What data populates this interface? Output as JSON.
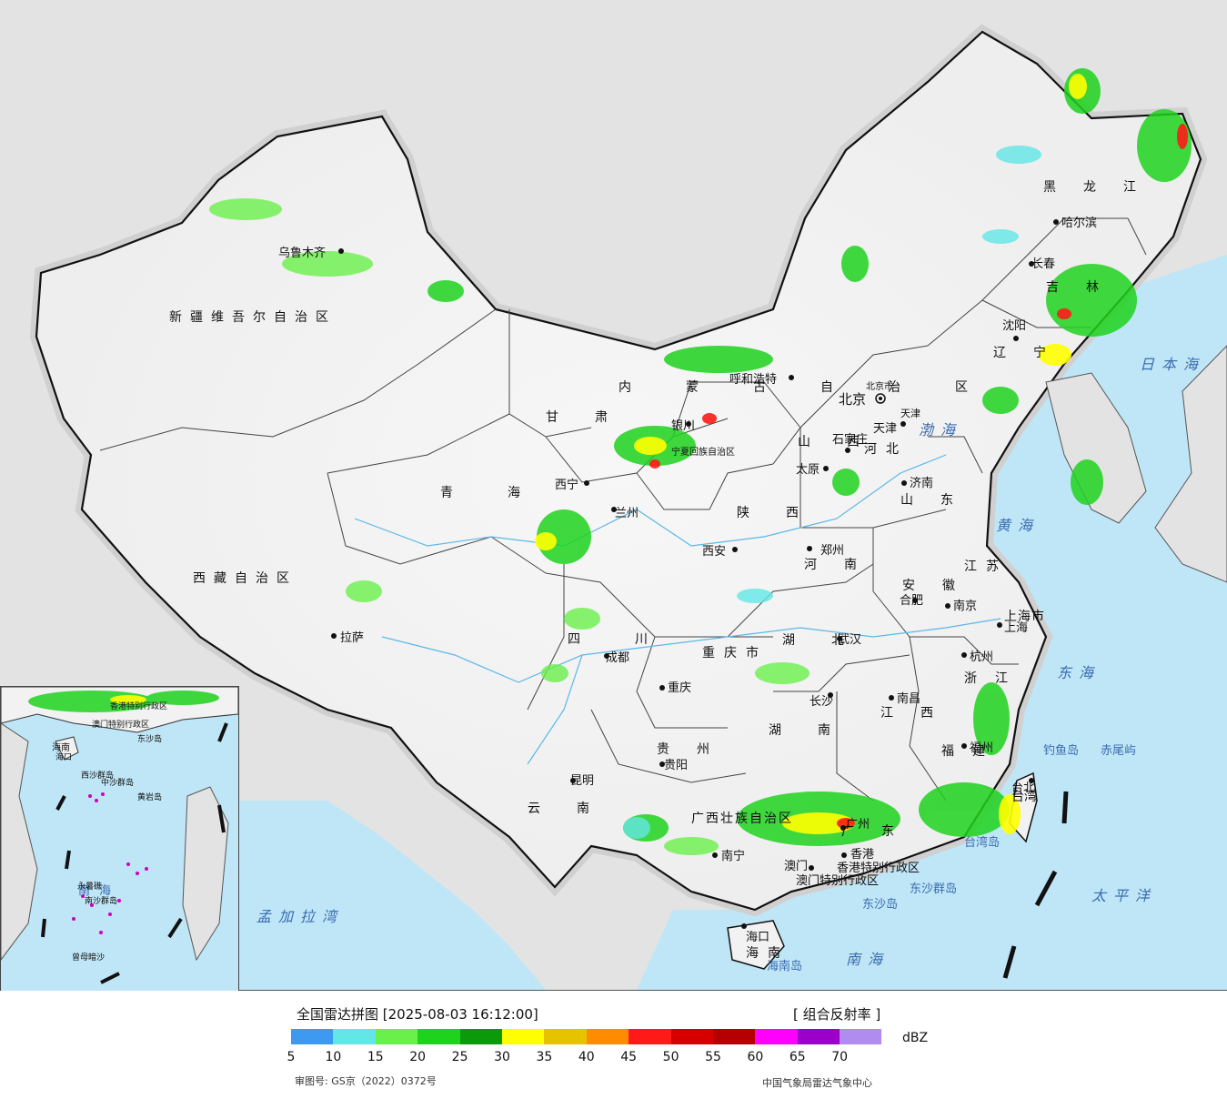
{
  "legend": {
    "title": "全国雷达拼图 [2025-08-03 16:12:00]",
    "product": "[ 组合反射率 ]",
    "unit": "dBZ",
    "approval": "审图号: GS京（2022）0372号",
    "credit": "中国气象局雷达气象中心",
    "ticks": [
      "5",
      "10",
      "15",
      "20",
      "25",
      "30",
      "35",
      "40",
      "45",
      "50",
      "55",
      "60",
      "65",
      "70"
    ],
    "colors": [
      "#3d9af0",
      "#63e6e6",
      "#6af04a",
      "#1ed21e",
      "#0a9a0a",
      "#ffff00",
      "#e6c200",
      "#ff8c00",
      "#ff1a1a",
      "#d60000",
      "#b50000",
      "#ff00ff",
      "#9a00c8",
      "#b08cf0"
    ]
  },
  "provinces": [
    {
      "name": "新疆维吾尔自治区"
    },
    {
      "name": "西藏自治区"
    },
    {
      "name": "青海"
    },
    {
      "name": "甘肃"
    },
    {
      "name": "内蒙古自治区"
    },
    {
      "name": "黑龙江"
    },
    {
      "name": "吉林"
    },
    {
      "name": "辽宁"
    },
    {
      "name": "河北"
    },
    {
      "name": "山西"
    },
    {
      "name": "山东"
    },
    {
      "name": "河南"
    },
    {
      "name": "陕西"
    },
    {
      "name": "四川"
    },
    {
      "name": "重庆市"
    },
    {
      "name": "湖北"
    },
    {
      "name": "湖南"
    },
    {
      "name": "贵州"
    },
    {
      "name": "云南"
    },
    {
      "name": "广西壮族自治区"
    },
    {
      "name": "广东"
    },
    {
      "name": "江西"
    },
    {
      "name": "福建"
    },
    {
      "name": "浙江"
    },
    {
      "name": "安徽"
    },
    {
      "name": "江苏"
    },
    {
      "name": "上海市"
    },
    {
      "name": "天津"
    },
    {
      "name": "北京市"
    },
    {
      "name": "宁夏回族自治区"
    },
    {
      "name": "海南"
    },
    {
      "name": "台湾"
    },
    {
      "name": "香港特别行政区"
    },
    {
      "name": "澳门特别行政区"
    }
  ],
  "cities": [
    {
      "name": "乌鲁木齐"
    },
    {
      "name": "拉萨"
    },
    {
      "name": "西宁"
    },
    {
      "name": "兰州"
    },
    {
      "name": "银川"
    },
    {
      "name": "呼和浩特"
    },
    {
      "name": "北京"
    },
    {
      "name": "天津"
    },
    {
      "name": "石家庄"
    },
    {
      "name": "太原"
    },
    {
      "name": "济南"
    },
    {
      "name": "郑州"
    },
    {
      "name": "西安"
    },
    {
      "name": "成都"
    },
    {
      "name": "重庆"
    },
    {
      "name": "武汉"
    },
    {
      "name": "长沙"
    },
    {
      "name": "贵阳"
    },
    {
      "name": "昆明"
    },
    {
      "name": "南宁"
    },
    {
      "name": "广州"
    },
    {
      "name": "南昌"
    },
    {
      "name": "福州"
    },
    {
      "name": "杭州"
    },
    {
      "name": "合肥"
    },
    {
      "name": "南京"
    },
    {
      "name": "上海"
    },
    {
      "name": "沈阳"
    },
    {
      "name": "长春"
    },
    {
      "name": "哈尔滨"
    },
    {
      "name": "台北"
    },
    {
      "name": "海口"
    },
    {
      "name": "澳门"
    },
    {
      "name": "香港"
    }
  ],
  "features": [
    {
      "name": "渤海"
    },
    {
      "name": "黄海"
    },
    {
      "name": "东海"
    },
    {
      "name": "日本海"
    },
    {
      "name": "太平洋"
    },
    {
      "name": "南海"
    },
    {
      "name": "孟加拉湾"
    },
    {
      "name": "钓鱼岛"
    },
    {
      "name": "赤尾屿"
    },
    {
      "name": "东沙群岛"
    },
    {
      "name": "东沙岛"
    },
    {
      "name": "海南岛"
    },
    {
      "name": "台湾岛"
    }
  ],
  "inset": {
    "sea": "南海",
    "labels": [
      "西沙群岛",
      "中沙群岛",
      "黄岩岛",
      "南沙群岛",
      "曾母暗沙",
      "永暑礁",
      "东沙岛",
      "海南",
      "海口",
      "香港特别行政区",
      "澳门特别行政区"
    ]
  }
}
